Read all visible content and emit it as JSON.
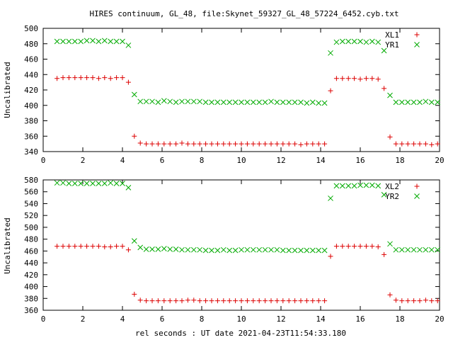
{
  "title": "HIRES continuum, GL_48, file:Skynet_59327_GL_48_57224_6452.cyb.txt",
  "xlabel": "rel seconds : UT date 2021-04-23T11:54:33.180",
  "chart_data": [
    {
      "type": "scatter",
      "ylabel": "Uncalibrated",
      "xlim": [
        0,
        20
      ],
      "ylim": [
        340,
        500
      ],
      "xticks": [
        0,
        2,
        4,
        6,
        8,
        10,
        12,
        14,
        16,
        18,
        20
      ],
      "yticks": [
        340,
        360,
        380,
        400,
        420,
        440,
        460,
        480,
        500
      ],
      "legend_position": "top-right",
      "x": [
        0.7,
        1.0,
        1.3,
        1.6,
        1.9,
        2.2,
        2.5,
        2.8,
        3.1,
        3.4,
        3.7,
        4.0,
        4.3,
        4.6,
        4.9,
        5.2,
        5.5,
        5.8,
        6.1,
        6.4,
        6.7,
        7.0,
        7.3,
        7.6,
        7.9,
        8.2,
        8.5,
        8.8,
        9.1,
        9.4,
        9.7,
        10.0,
        10.3,
        10.6,
        10.9,
        11.2,
        11.5,
        11.8,
        12.1,
        12.4,
        12.7,
        13.0,
        13.3,
        13.6,
        13.9,
        14.2,
        14.5,
        14.8,
        15.1,
        15.4,
        15.7,
        16.0,
        16.3,
        16.6,
        16.9,
        17.2,
        17.5,
        17.8,
        18.1,
        18.4,
        18.7,
        19.0,
        19.3,
        19.6,
        19.9
      ],
      "series": [
        {
          "name": "XL1",
          "color": "#dd0000",
          "marker": "plus",
          "values": [
            435,
            436,
            436,
            436,
            436,
            436,
            436,
            435,
            436,
            435,
            436,
            436,
            430,
            360,
            351,
            350,
            350,
            350,
            350,
            350,
            350,
            351,
            350,
            350,
            350,
            350,
            350,
            350,
            350,
            350,
            350,
            350,
            350,
            350,
            350,
            350,
            350,
            350,
            350,
            350,
            350,
            349,
            350,
            350,
            350,
            350,
            419,
            435,
            435,
            435,
            435,
            434,
            435,
            435,
            434,
            422,
            359,
            350,
            350,
            350,
            350,
            350,
            350,
            349,
            350
          ]
        },
        {
          "name": "YR1",
          "color": "#00aa00",
          "marker": "cross",
          "values": [
            483,
            483,
            483,
            483,
            483,
            484,
            484,
            483,
            484,
            483,
            483,
            483,
            478,
            414,
            405,
            405,
            405,
            404,
            406,
            405,
            404,
            405,
            405,
            405,
            405,
            404,
            404,
            404,
            404,
            404,
            404,
            404,
            404,
            404,
            404,
            404,
            405,
            404,
            404,
            404,
            404,
            404,
            403,
            404,
            403,
            403,
            468,
            482,
            483,
            483,
            483,
            483,
            482,
            483,
            482,
            471,
            413,
            404,
            404,
            404,
            404,
            404,
            405,
            404,
            404
          ]
        }
      ]
    },
    {
      "type": "scatter",
      "ylabel": "Uncalibrated",
      "xlim": [
        0,
        20
      ],
      "ylim": [
        360,
        580
      ],
      "xticks": [
        0,
        2,
        4,
        6,
        8,
        10,
        12,
        14,
        16,
        18,
        20
      ],
      "yticks": [
        360,
        380,
        400,
        420,
        440,
        460,
        480,
        500,
        520,
        540,
        560,
        580
      ],
      "legend_position": "top-right",
      "x": [
        0.7,
        1.0,
        1.3,
        1.6,
        1.9,
        2.2,
        2.5,
        2.8,
        3.1,
        3.4,
        3.7,
        4.0,
        4.3,
        4.6,
        4.9,
        5.2,
        5.5,
        5.8,
        6.1,
        6.4,
        6.7,
        7.0,
        7.3,
        7.6,
        7.9,
        8.2,
        8.5,
        8.8,
        9.1,
        9.4,
        9.7,
        10.0,
        10.3,
        10.6,
        10.9,
        11.2,
        11.5,
        11.8,
        12.1,
        12.4,
        12.7,
        13.0,
        13.3,
        13.6,
        13.9,
        14.2,
        14.5,
        14.8,
        15.1,
        15.4,
        15.7,
        16.0,
        16.3,
        16.6,
        16.9,
        17.2,
        17.5,
        17.8,
        18.1,
        18.4,
        18.7,
        19.0,
        19.3,
        19.6,
        19.9
      ],
      "series": [
        {
          "name": "XL2",
          "color": "#dd0000",
          "marker": "plus",
          "values": [
            468,
            468,
            468,
            468,
            468,
            468,
            468,
            468,
            467,
            467,
            468,
            468,
            462,
            387,
            377,
            376,
            376,
            376,
            376,
            376,
            376,
            376,
            377,
            377,
            376,
            376,
            376,
            376,
            376,
            376,
            376,
            376,
            376,
            376,
            376,
            376,
            376,
            376,
            376,
            376,
            376,
            376,
            376,
            376,
            376,
            376,
            451,
            468,
            468,
            468,
            468,
            468,
            468,
            468,
            467,
            454,
            386,
            377,
            376,
            376,
            376,
            376,
            377,
            376,
            376
          ]
        },
        {
          "name": "YR2",
          "color": "#00aa00",
          "marker": "cross",
          "values": [
            575,
            575,
            574,
            574,
            574,
            574,
            574,
            574,
            574,
            575,
            574,
            574,
            567,
            477,
            466,
            463,
            463,
            463,
            464,
            463,
            463,
            462,
            462,
            462,
            462,
            461,
            461,
            461,
            462,
            461,
            461,
            462,
            462,
            462,
            462,
            462,
            462,
            462,
            461,
            461,
            461,
            461,
            461,
            461,
            461,
            461,
            549,
            570,
            570,
            570,
            570,
            571,
            571,
            571,
            570,
            555,
            472,
            462,
            462,
            462,
            462,
            462,
            462,
            462,
            462
          ]
        }
      ]
    }
  ]
}
